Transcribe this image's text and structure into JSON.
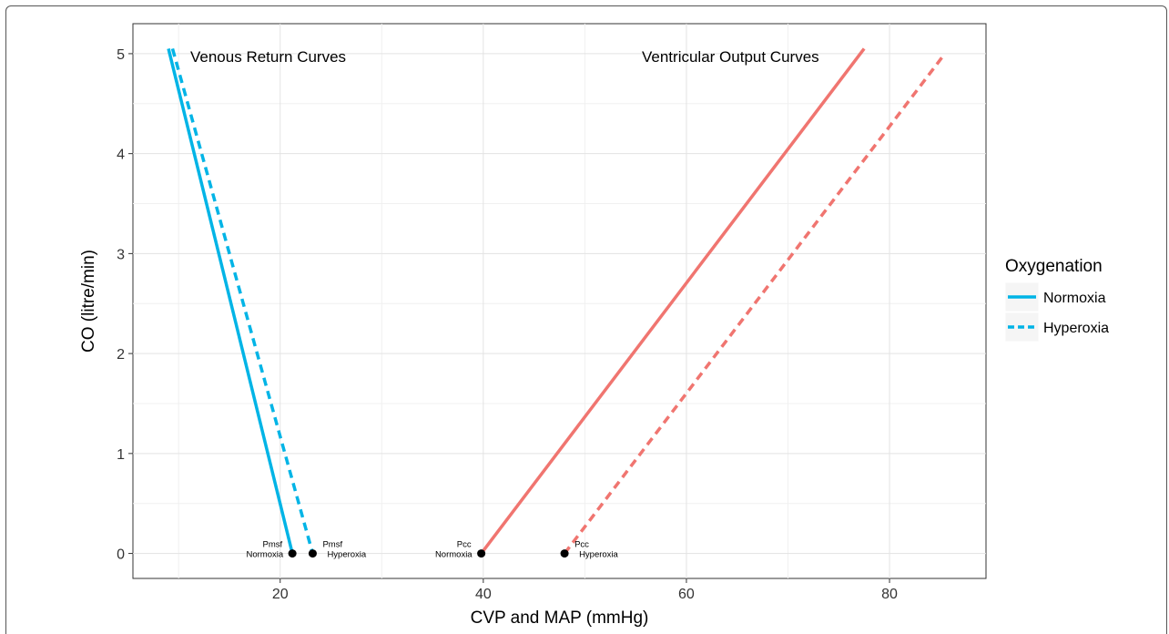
{
  "chart_data": {
    "type": "line",
    "xlabel": "CVP and MAP (mmHg)",
    "ylabel": "CO (litre/min)",
    "xlim": [
      5.5,
      89.5
    ],
    "ylim": [
      -0.25,
      5.3
    ],
    "x_ticks": [
      20,
      40,
      60,
      80
    ],
    "y_ticks": [
      0,
      1,
      2,
      3,
      4,
      5
    ],
    "grid": true,
    "legend": {
      "title": "Oxygenation",
      "position": "right",
      "entries": [
        {
          "label": "Normoxia",
          "style": "solid"
        },
        {
          "label": "Hyperoxia",
          "style": "dashed"
        }
      ]
    },
    "annotations": [
      {
        "text": "Venous Return Curves",
        "x": 11,
        "y": 5
      },
      {
        "text": "Ventricular Output Curves",
        "x": 64,
        "y": 5
      }
    ],
    "series": [
      {
        "name": "Normoxia",
        "group": "Venous Return Curves",
        "color": "#00b4e6",
        "style": "solid",
        "points": [
          [
            9.0,
            5.05
          ],
          [
            21.2,
            0
          ]
        ]
      },
      {
        "name": "Hyperoxia",
        "group": "Venous Return Curves",
        "color": "#00b4e6",
        "style": "dashed",
        "points": [
          [
            9.4,
            5.05
          ],
          [
            23.2,
            0
          ]
        ]
      },
      {
        "name": "Normoxia",
        "group": "Ventricular Output Curves",
        "color": "#f07570",
        "style": "solid",
        "points": [
          [
            39.8,
            0
          ],
          [
            77.5,
            5.05
          ]
        ]
      },
      {
        "name": "Hyperoxia",
        "group": "Ventricular Output Curves",
        "color": "#f07570",
        "style": "dashed",
        "points": [
          [
            48.0,
            0
          ],
          [
            85.3,
            4.98
          ]
        ]
      }
    ],
    "points": [
      {
        "x": 21.2,
        "y": 0,
        "label1": "Pmsf",
        "label2": "Normoxia",
        "side": "left"
      },
      {
        "x": 23.2,
        "y": 0,
        "label1": "Pmsf",
        "label2": "Hyperoxia",
        "side": "right"
      },
      {
        "x": 39.8,
        "y": 0,
        "label1": "Pcc",
        "label2": "Normoxia",
        "side": "left"
      },
      {
        "x": 48.0,
        "y": 0,
        "label1": "Pcc",
        "label2": "Hyperoxia",
        "side": "right"
      }
    ]
  }
}
